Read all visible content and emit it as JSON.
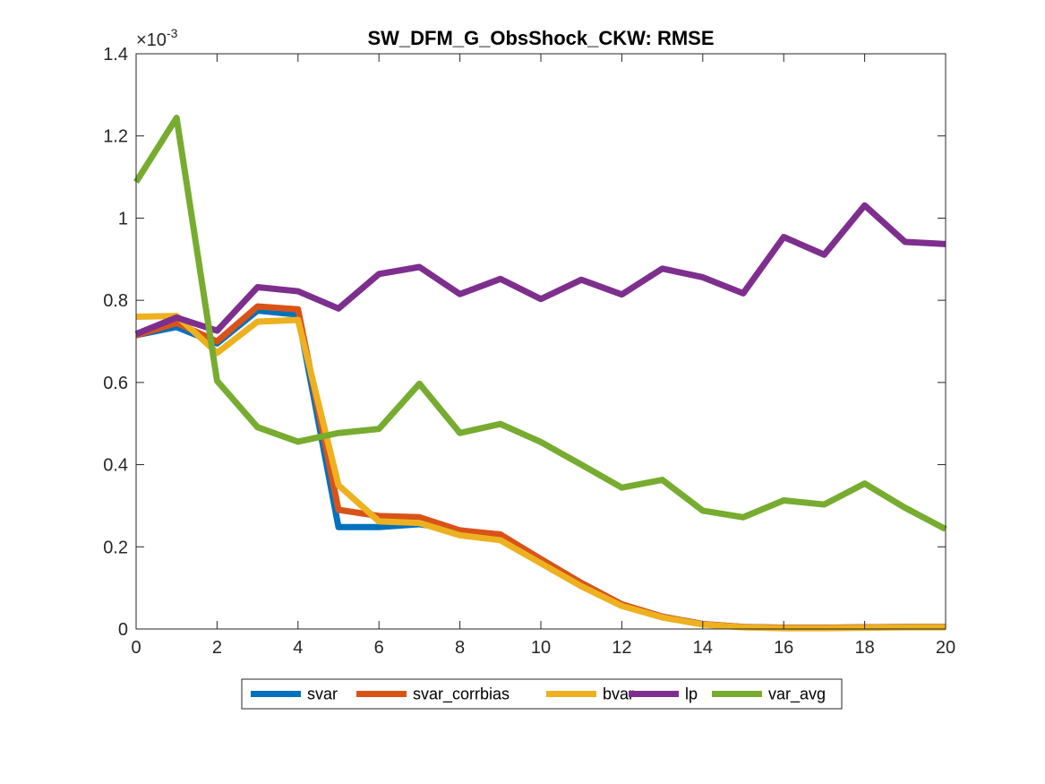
{
  "chart_data": {
    "type": "line",
    "title": "SW_DFM_G_ObsShock_CKW: RMSE",
    "xlabel": "",
    "ylabel": "",
    "y_exponent_label": "×10",
    "y_exponent_power": "-3",
    "xlim": [
      0,
      20
    ],
    "ylim": [
      0,
      1.4
    ],
    "xticks": [
      "0",
      "2",
      "4",
      "6",
      "8",
      "10",
      "12",
      "14",
      "16",
      "18",
      "20"
    ],
    "yticks": [
      "0",
      "0.2",
      "0.4",
      "0.6",
      "0.8",
      "1",
      "1.2",
      "1.4"
    ],
    "grid": false,
    "legend_position": "bottom-outside",
    "x": [
      0,
      1,
      2,
      3,
      4,
      5,
      6,
      7,
      8,
      9,
      10,
      11,
      12,
      13,
      14,
      15,
      16,
      17,
      18,
      19,
      20
    ],
    "series": [
      {
        "name": "svar",
        "color": "#0072BD",
        "values": [
          0.715,
          0.735,
          0.695,
          0.775,
          0.765,
          0.248,
          0.248,
          0.255,
          0.24,
          0.228,
          0.17,
          0.112,
          0.06,
          0.03,
          0.012,
          0.005,
          0.003,
          0.003,
          0.004,
          0.005,
          0.005
        ]
      },
      {
        "name": "svar_corrbias",
        "color": "#D95319",
        "values": [
          0.715,
          0.745,
          0.7,
          0.785,
          0.778,
          0.29,
          0.275,
          0.272,
          0.24,
          0.23,
          0.17,
          0.112,
          0.06,
          0.03,
          0.012,
          0.005,
          0.003,
          0.003,
          0.004,
          0.005,
          0.005
        ]
      },
      {
        "name": "bvar",
        "color": "#EDB120",
        "values": [
          0.76,
          0.762,
          0.672,
          0.748,
          0.752,
          0.35,
          0.262,
          0.258,
          0.228,
          0.216,
          0.16,
          0.104,
          0.056,
          0.028,
          0.011,
          0.004,
          0.002,
          0.002,
          0.003,
          0.004,
          0.004
        ]
      },
      {
        "name": "lp",
        "color": "#7E2F8E",
        "values": [
          0.718,
          0.758,
          0.726,
          0.832,
          0.822,
          0.78,
          0.864,
          0.881,
          0.815,
          0.852,
          0.803,
          0.85,
          0.814,
          0.877,
          0.856,
          0.817,
          0.954,
          0.911,
          1.031,
          0.942,
          0.937
        ]
      },
      {
        "name": "var_avg",
        "color": "#77AC30",
        "values": [
          1.088,
          1.244,
          0.604,
          0.491,
          0.456,
          0.477,
          0.487,
          0.597,
          0.477,
          0.499,
          0.455,
          0.4,
          0.344,
          0.363,
          0.288,
          0.272,
          0.313,
          0.303,
          0.354,
          0.295,
          0.243
        ]
      }
    ]
  }
}
